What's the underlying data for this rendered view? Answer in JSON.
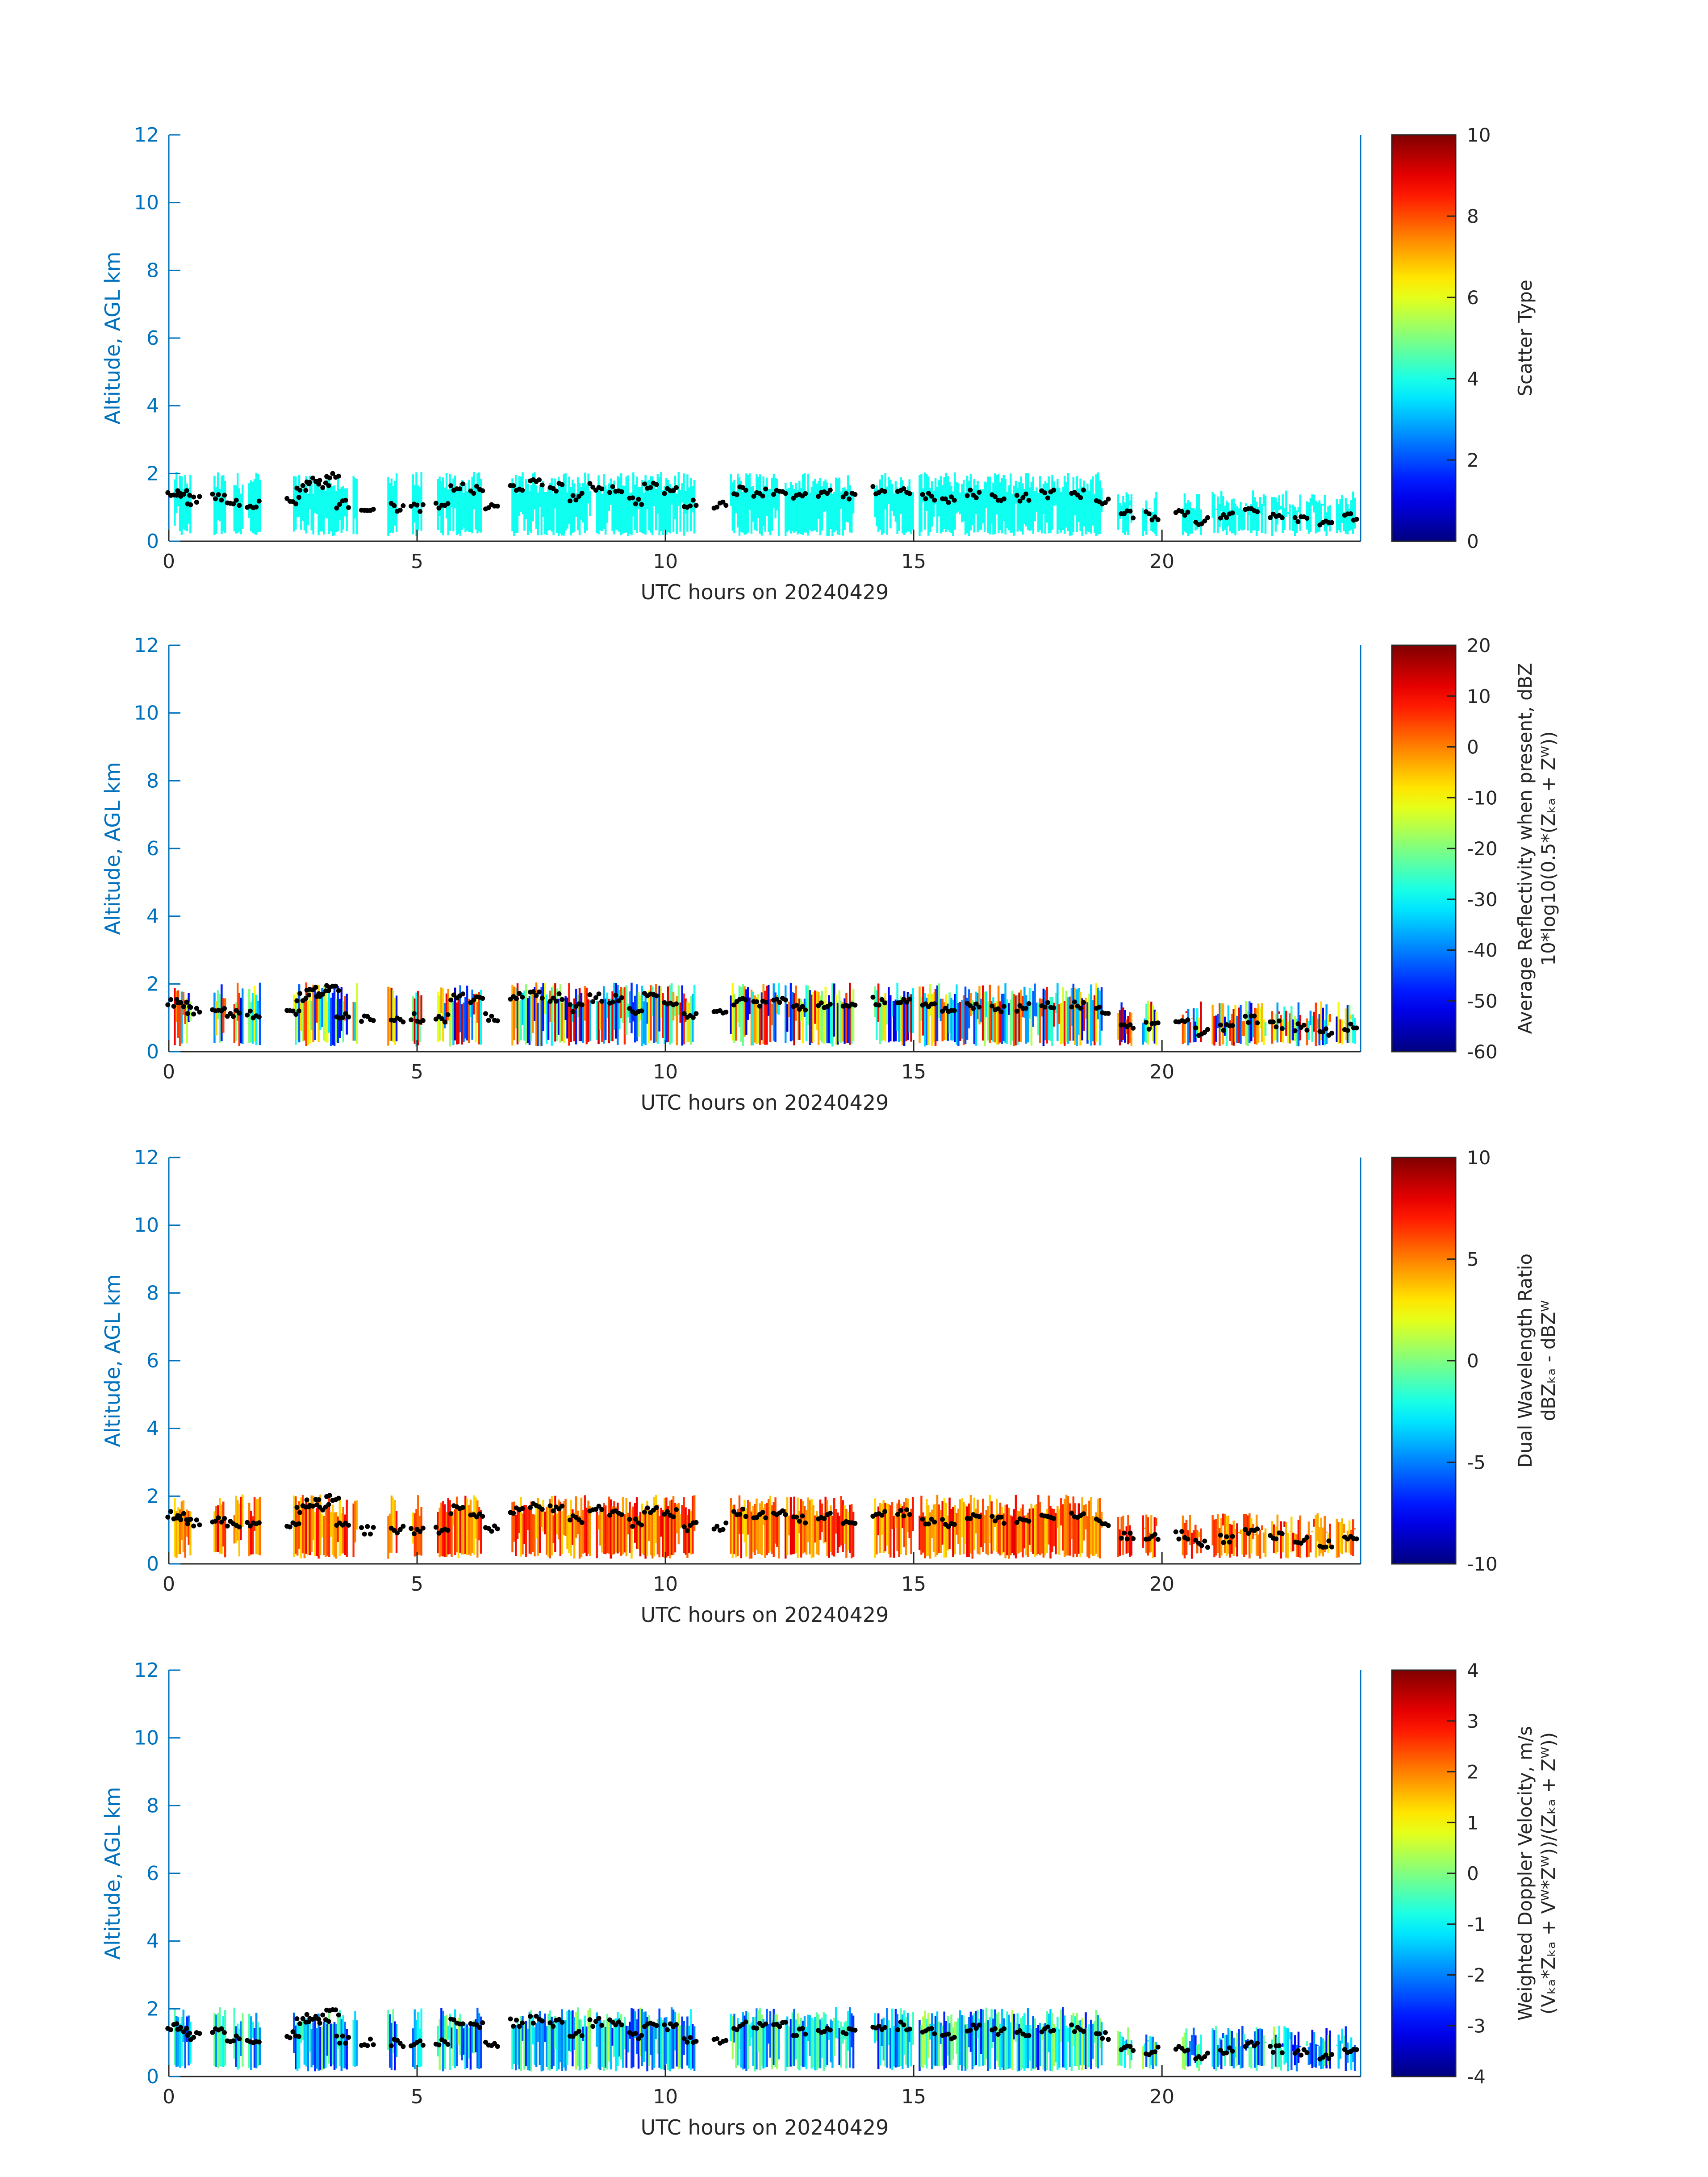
{
  "figure": {
    "axis_color": "#0072BD",
    "colormap": "jet",
    "cloud_base_color": "#000000"
  },
  "chart_data": [
    {
      "type": "heatmap",
      "title": "",
      "xlabel": "UTC hours on 20240429",
      "ylabel": "Altitude, AGL km",
      "xlim": [
        0,
        24
      ],
      "ylim": [
        0,
        12
      ],
      "xticks": [
        "0",
        "5",
        "10",
        "15",
        "20"
      ],
      "yticks": [
        "0",
        "2",
        "4",
        "6",
        "8",
        "10",
        "12"
      ],
      "colorbar": {
        "label_lines": [
          "Scatter Type"
        ],
        "range": [
          0,
          10
        ],
        "ticks": [
          "0",
          "2",
          "4",
          "6",
          "8",
          "10"
        ]
      },
      "field": "scatter_type",
      "dominant_value": 3.9,
      "cloud_base_km": [
        [
          0.1,
          1.45
        ],
        [
          0.3,
          1.4
        ],
        [
          0.5,
          1.2
        ],
        [
          1.0,
          1.3
        ],
        [
          1.3,
          1.15
        ],
        [
          1.7,
          1.1
        ],
        [
          2.5,
          1.2
        ],
        [
          2.7,
          1.6
        ],
        [
          2.9,
          1.8
        ],
        [
          3.1,
          1.7
        ],
        [
          3.3,
          1.9
        ],
        [
          3.5,
          1.1
        ],
        [
          4.0,
          1.0
        ],
        [
          4.6,
          1.0
        ],
        [
          5.0,
          1.0
        ],
        [
          5.5,
          1.0
        ],
        [
          5.8,
          1.6
        ],
        [
          6.2,
          1.5
        ],
        [
          6.5,
          1.0
        ],
        [
          7.0,
          1.6
        ],
        [
          7.4,
          1.7
        ],
        [
          7.8,
          1.6
        ],
        [
          8.2,
          1.3
        ],
        [
          8.6,
          1.6
        ],
        [
          9.0,
          1.55
        ],
        [
          9.4,
          1.2
        ],
        [
          9.7,
          1.6
        ],
        [
          10.1,
          1.5
        ],
        [
          10.5,
          1.1
        ],
        [
          11.1,
          1.1
        ],
        [
          11.5,
          1.5
        ],
        [
          11.9,
          1.45
        ],
        [
          12.3,
          1.5
        ],
        [
          12.7,
          1.3
        ],
        [
          13.2,
          1.4
        ],
        [
          13.7,
          1.3
        ],
        [
          14.3,
          1.5
        ],
        [
          14.8,
          1.5
        ],
        [
          15.3,
          1.3
        ],
        [
          15.7,
          1.2
        ],
        [
          16.2,
          1.4
        ],
        [
          16.7,
          1.3
        ],
        [
          17.2,
          1.3
        ],
        [
          17.7,
          1.4
        ],
        [
          18.3,
          1.4
        ],
        [
          18.8,
          1.2
        ],
        [
          19.3,
          0.8
        ],
        [
          19.8,
          0.75
        ],
        [
          20.4,
          0.85
        ],
        [
          20.8,
          0.6
        ],
        [
          21.3,
          0.75
        ],
        [
          21.8,
          0.95
        ],
        [
          22.3,
          0.8
        ],
        [
          22.8,
          0.7
        ],
        [
          23.3,
          0.6
        ],
        [
          23.8,
          0.7
        ]
      ]
    },
    {
      "type": "heatmap",
      "title": "",
      "xlabel": "UTC hours on 20240429",
      "ylabel": "Altitude, AGL km",
      "xlim": [
        0,
        24
      ],
      "ylim": [
        0,
        12
      ],
      "xticks": [
        "0",
        "5",
        "10",
        "15",
        "20"
      ],
      "yticks": [
        "0",
        "2",
        "4",
        "6",
        "8",
        "10",
        "12"
      ],
      "colorbar": {
        "label_lines": [
          "Average Reflectivity when present, dBZ",
          "10*log10(0.5*(Zₖₐ + Zᵂ))"
        ],
        "range": [
          -60,
          20
        ],
        "ticks": [
          "-60",
          "-50",
          "-40",
          "-30",
          "-20",
          "-10",
          "0",
          "10",
          "20"
        ]
      },
      "field": "reflectivity_dbz",
      "typical_range": [
        -55,
        15
      ],
      "cloud_base_km": [
        [
          0.1,
          1.45
        ],
        [
          0.3,
          1.4
        ],
        [
          0.5,
          1.2
        ],
        [
          1.0,
          1.3
        ],
        [
          1.3,
          1.15
        ],
        [
          1.7,
          1.1
        ],
        [
          2.5,
          1.2
        ],
        [
          2.7,
          1.6
        ],
        [
          2.9,
          1.8
        ],
        [
          3.1,
          1.7
        ],
        [
          3.3,
          1.9
        ],
        [
          3.5,
          1.1
        ],
        [
          4.0,
          1.0
        ],
        [
          4.6,
          1.0
        ],
        [
          5.0,
          1.0
        ],
        [
          5.5,
          1.0
        ],
        [
          5.8,
          1.6
        ],
        [
          6.2,
          1.5
        ],
        [
          6.5,
          1.0
        ],
        [
          7.0,
          1.6
        ],
        [
          7.4,
          1.7
        ],
        [
          7.8,
          1.6
        ],
        [
          8.2,
          1.3
        ],
        [
          8.6,
          1.6
        ],
        [
          9.0,
          1.55
        ],
        [
          9.4,
          1.2
        ],
        [
          9.7,
          1.6
        ],
        [
          10.1,
          1.5
        ],
        [
          10.5,
          1.1
        ],
        [
          11.1,
          1.1
        ],
        [
          11.5,
          1.5
        ],
        [
          11.9,
          1.45
        ],
        [
          12.3,
          1.5
        ],
        [
          12.7,
          1.3
        ],
        [
          13.2,
          1.4
        ],
        [
          13.7,
          1.3
        ],
        [
          14.3,
          1.5
        ],
        [
          14.8,
          1.5
        ],
        [
          15.3,
          1.3
        ],
        [
          15.7,
          1.2
        ],
        [
          16.2,
          1.4
        ],
        [
          16.7,
          1.3
        ],
        [
          17.2,
          1.3
        ],
        [
          17.7,
          1.4
        ],
        [
          18.3,
          1.4
        ],
        [
          18.8,
          1.2
        ],
        [
          19.3,
          0.8
        ],
        [
          19.8,
          0.75
        ],
        [
          20.4,
          0.85
        ],
        [
          20.8,
          0.6
        ],
        [
          21.3,
          0.75
        ],
        [
          21.8,
          0.95
        ],
        [
          22.3,
          0.8
        ],
        [
          22.8,
          0.7
        ],
        [
          23.3,
          0.6
        ],
        [
          23.8,
          0.7
        ]
      ]
    },
    {
      "type": "heatmap",
      "title": "",
      "xlabel": "UTC hours on 20240429",
      "ylabel": "Altitude, AGL km",
      "xlim": [
        0,
        24
      ],
      "ylim": [
        0,
        12
      ],
      "xticks": [
        "0",
        "5",
        "10",
        "15",
        "20"
      ],
      "yticks": [
        "0",
        "2",
        "4",
        "6",
        "8",
        "10",
        "12"
      ],
      "colorbar": {
        "label_lines": [
          "Dual Wavelength Ratio",
          "dBZₖₐ - dBZᵂ"
        ],
        "range": [
          -10,
          10
        ],
        "ticks": [
          "-10",
          "-5",
          "0",
          "5",
          "10"
        ]
      },
      "field": "dual_wavelength_ratio_db",
      "typical_range": [
        3,
        8
      ],
      "cloud_base_km": [
        [
          0.1,
          1.45
        ],
        [
          0.3,
          1.4
        ],
        [
          0.5,
          1.2
        ],
        [
          1.0,
          1.3
        ],
        [
          1.3,
          1.15
        ],
        [
          1.7,
          1.1
        ],
        [
          2.5,
          1.2
        ],
        [
          2.7,
          1.6
        ],
        [
          2.9,
          1.8
        ],
        [
          3.1,
          1.7
        ],
        [
          3.3,
          1.9
        ],
        [
          3.5,
          1.1
        ],
        [
          4.0,
          1.0
        ],
        [
          4.6,
          1.0
        ],
        [
          5.0,
          1.0
        ],
        [
          5.5,
          1.0
        ],
        [
          5.8,
          1.6
        ],
        [
          6.2,
          1.5
        ],
        [
          6.5,
          1.0
        ],
        [
          7.0,
          1.6
        ],
        [
          7.4,
          1.7
        ],
        [
          7.8,
          1.6
        ],
        [
          8.2,
          1.3
        ],
        [
          8.6,
          1.6
        ],
        [
          9.0,
          1.55
        ],
        [
          9.4,
          1.2
        ],
        [
          9.7,
          1.6
        ],
        [
          10.1,
          1.5
        ],
        [
          10.5,
          1.1
        ],
        [
          11.1,
          1.1
        ],
        [
          11.5,
          1.5
        ],
        [
          11.9,
          1.45
        ],
        [
          12.3,
          1.5
        ],
        [
          12.7,
          1.3
        ],
        [
          13.2,
          1.4
        ],
        [
          13.7,
          1.3
        ],
        [
          14.3,
          1.5
        ],
        [
          14.8,
          1.5
        ],
        [
          15.3,
          1.3
        ],
        [
          15.7,
          1.2
        ],
        [
          16.2,
          1.4
        ],
        [
          16.7,
          1.3
        ],
        [
          17.2,
          1.3
        ],
        [
          17.7,
          1.4
        ],
        [
          18.3,
          1.4
        ],
        [
          18.8,
          1.2
        ],
        [
          19.3,
          0.8
        ],
        [
          19.8,
          0.75
        ],
        [
          20.4,
          0.85
        ],
        [
          20.8,
          0.6
        ],
        [
          21.3,
          0.75
        ],
        [
          21.8,
          0.95
        ],
        [
          22.3,
          0.8
        ],
        [
          22.8,
          0.7
        ],
        [
          23.3,
          0.6
        ],
        [
          23.8,
          0.7
        ]
      ]
    },
    {
      "type": "heatmap",
      "title": "",
      "xlabel": "UTC hours on 20240429",
      "ylabel": "Altitude, AGL km",
      "xlim": [
        0,
        24
      ],
      "ylim": [
        0,
        12
      ],
      "xticks": [
        "0",
        "5",
        "10",
        "15",
        "20"
      ],
      "yticks": [
        "0",
        "2",
        "4",
        "6",
        "8",
        "10",
        "12"
      ],
      "colorbar": {
        "label_lines": [
          "Weighted Doppler Velocity, m/s",
          "(Vₖₐ*Zₖₐ + Vᵂ*Zᵂ))/(Zₖₐ + Zᵂ))"
        ],
        "range": [
          -4,
          4
        ],
        "ticks": [
          "-4",
          "-3",
          "-2",
          "-1",
          "0",
          "1",
          "2",
          "3",
          "4"
        ]
      },
      "field": "doppler_velocity_ms",
      "typical_range": [
        -3,
        0.5
      ],
      "cloud_base_km": [
        [
          0.1,
          1.45
        ],
        [
          0.3,
          1.4
        ],
        [
          0.5,
          1.2
        ],
        [
          1.0,
          1.3
        ],
        [
          1.3,
          1.15
        ],
        [
          1.7,
          1.1
        ],
        [
          2.5,
          1.2
        ],
        [
          2.7,
          1.6
        ],
        [
          2.9,
          1.8
        ],
        [
          3.1,
          1.7
        ],
        [
          3.3,
          1.9
        ],
        [
          3.5,
          1.1
        ],
        [
          4.0,
          1.0
        ],
        [
          4.6,
          1.0
        ],
        [
          5.0,
          1.0
        ],
        [
          5.5,
          1.0
        ],
        [
          5.8,
          1.6
        ],
        [
          6.2,
          1.5
        ],
        [
          6.5,
          1.0
        ],
        [
          7.0,
          1.6
        ],
        [
          7.4,
          1.7
        ],
        [
          7.8,
          1.6
        ],
        [
          8.2,
          1.3
        ],
        [
          8.6,
          1.6
        ],
        [
          9.0,
          1.55
        ],
        [
          9.4,
          1.2
        ],
        [
          9.7,
          1.6
        ],
        [
          10.1,
          1.5
        ],
        [
          10.5,
          1.1
        ],
        [
          11.1,
          1.1
        ],
        [
          11.5,
          1.5
        ],
        [
          11.9,
          1.45
        ],
        [
          12.3,
          1.5
        ],
        [
          12.7,
          1.3
        ],
        [
          13.2,
          1.4
        ],
        [
          13.7,
          1.3
        ],
        [
          14.3,
          1.5
        ],
        [
          14.8,
          1.5
        ],
        [
          15.3,
          1.3
        ],
        [
          15.7,
          1.2
        ],
        [
          16.2,
          1.4
        ],
        [
          16.7,
          1.3
        ],
        [
          17.2,
          1.3
        ],
        [
          17.7,
          1.4
        ],
        [
          18.3,
          1.4
        ],
        [
          18.8,
          1.2
        ],
        [
          19.3,
          0.8
        ],
        [
          19.8,
          0.75
        ],
        [
          20.4,
          0.85
        ],
        [
          20.8,
          0.6
        ],
        [
          21.3,
          0.75
        ],
        [
          21.8,
          0.95
        ],
        [
          22.3,
          0.8
        ],
        [
          22.8,
          0.7
        ],
        [
          23.3,
          0.6
        ],
        [
          23.8,
          0.7
        ]
      ]
    }
  ]
}
